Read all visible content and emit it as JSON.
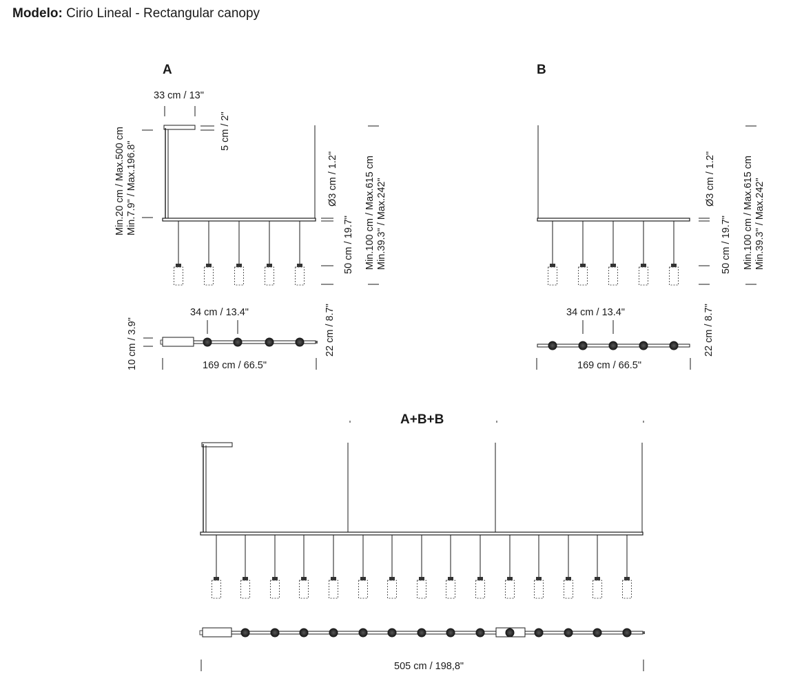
{
  "header": {
    "label": "Modelo:",
    "model": "Cirio Lineal - Rectangular canopy"
  },
  "diagrams": {
    "a": {
      "title": "A",
      "canopy_width": "33 cm / 13\"",
      "canopy_height": "5 cm / 2\"",
      "canopy_drop": "Min.20 cm / Max.500 cm",
      "canopy_drop_in": "Min.7.9\" / Max.196.8\"",
      "diameter": "Ø3 cm / 1.2\"",
      "pendant_length": "50 cm / 19.7\"",
      "overall_drop": "Min.100 cm / Max.615 cm",
      "overall_drop_in": "Min.39.3\" / Max.242\"",
      "spacing": "34 cm / 13.4\"",
      "depth": "10 cm / 3.9\"",
      "total_length": "169 cm / 66.5\"",
      "plan_depth": "22 cm / 8.7\""
    },
    "b": {
      "title": "B",
      "diameter": "Ø3 cm / 1.2\"",
      "pendant_length": "50 cm / 19.7\"",
      "overall_drop": "Min.100 cm / Max.615 cm",
      "overall_drop_in": "Min.39.3\" / Max.242\"",
      "spacing": "34 cm / 13.4\"",
      "total_length": "169 cm / 66.5\"",
      "plan_depth": "22 cm / 8.7\""
    },
    "combo": {
      "title": "A+B+B",
      "total_length": "505 cm / 198,8\""
    }
  },
  "colors": {
    "line": "#1a1a1a",
    "shade": "#555555"
  }
}
